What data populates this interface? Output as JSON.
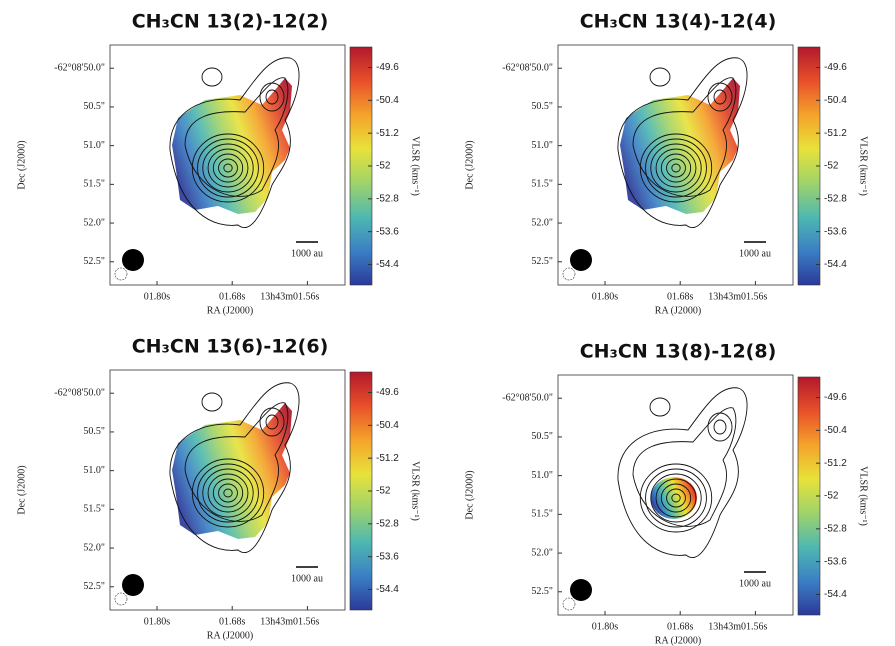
{
  "chart_data": [
    {
      "type": "velocity-map",
      "title": "CH₃CN 13(2)-12(2)",
      "xlabel": "RA (J2000)",
      "ylabel": "Dec (J2000)",
      "colorbar_label": "VLSR (kms⁻¹)",
      "scale_label": "1000 au",
      "xlim": [
        1.875,
        1.5
      ],
      "xticks": [
        {
          "value": 1.8,
          "label": "01.80s"
        },
        {
          "value": 1.68,
          "label": "01.68s"
        },
        {
          "value": 1.56,
          "label": "13h43m01.56s"
        }
      ],
      "ylim": [
        49.7,
        52.8
      ],
      "yticks": [
        {
          "value": 50.0,
          "label": "-62°08'50.0\""
        },
        {
          "value": 50.5,
          "label": "50.5\""
        },
        {
          "value": 51.0,
          "label": "51.0\""
        },
        {
          "value": 51.5,
          "label": "51.5\""
        },
        {
          "value": 52.0,
          "label": "52.0\""
        },
        {
          "value": 52.5,
          "label": "52.5\""
        }
      ],
      "clim": [
        -49.1,
        -54.9
      ],
      "cticks": [
        -49.6,
        -50.4,
        -51.2,
        -52.0,
        -52.8,
        -53.6,
        -54.4
      ],
      "colormap": [
        "#b2182b",
        "#e8502a",
        "#f4a32a",
        "#e8e23a",
        "#9fd36a",
        "#4fb8b0",
        "#3b7fc4",
        "#2b3a9a"
      ]
    },
    {
      "type": "velocity-map",
      "title": "CH₃CN 13(4)-12(4)",
      "xlabel": "RA (J2000)",
      "ylabel": "Dec (J2000)",
      "colorbar_label": "VLSR (kms⁻¹)",
      "scale_label": "1000 au",
      "xlim": [
        1.875,
        1.5
      ],
      "xticks": [
        {
          "value": 1.8,
          "label": "01.80s"
        },
        {
          "value": 1.68,
          "label": "01.68s"
        },
        {
          "value": 1.56,
          "label": "13h43m01.56s"
        }
      ],
      "ylim": [
        49.7,
        52.8
      ],
      "yticks": [
        {
          "value": 50.0,
          "label": "-62°08'50.0\""
        },
        {
          "value": 50.5,
          "label": "50.5\""
        },
        {
          "value": 51.0,
          "label": "51.0\""
        },
        {
          "value": 51.5,
          "label": "51.5\""
        },
        {
          "value": 52.0,
          "label": "52.0\""
        },
        {
          "value": 52.5,
          "label": "52.5\""
        }
      ],
      "clim": [
        -49.1,
        -54.9
      ],
      "cticks": [
        -49.6,
        -50.4,
        -51.2,
        -52.0,
        -52.8,
        -53.6,
        -54.4
      ],
      "colormap": [
        "#b2182b",
        "#e8502a",
        "#f4a32a",
        "#e8e23a",
        "#9fd36a",
        "#4fb8b0",
        "#3b7fc4",
        "#2b3a9a"
      ]
    },
    {
      "type": "velocity-map",
      "title": "CH₃CN 13(6)-12(6)",
      "xlabel": "RA (J2000)",
      "ylabel": "Dec (J2000)",
      "colorbar_label": "VLSR (kms⁻¹)",
      "scale_label": "1000 au",
      "xlim": [
        1.875,
        1.5
      ],
      "xticks": [
        {
          "value": 1.8,
          "label": "01.80s"
        },
        {
          "value": 1.68,
          "label": "01.68s"
        },
        {
          "value": 1.56,
          "label": "13h43m01.56s"
        }
      ],
      "ylim": [
        49.7,
        52.8
      ],
      "yticks": [
        {
          "value": 50.0,
          "label": "-62°08'50.0\""
        },
        {
          "value": 50.5,
          "label": "50.5\""
        },
        {
          "value": 51.0,
          "label": "51.0\""
        },
        {
          "value": 51.5,
          "label": "51.5\""
        },
        {
          "value": 52.0,
          "label": "52.0\""
        },
        {
          "value": 52.5,
          "label": "52.5\""
        }
      ],
      "clim": [
        -49.1,
        -54.9
      ],
      "cticks": [
        -49.6,
        -50.4,
        -51.2,
        -52.0,
        -52.8,
        -53.6,
        -54.4
      ],
      "colormap": [
        "#b2182b",
        "#e8502a",
        "#f4a32a",
        "#e8e23a",
        "#9fd36a",
        "#4fb8b0",
        "#3b7fc4",
        "#2b3a9a"
      ]
    },
    {
      "type": "velocity-map",
      "title": "CH₃CN 13(8)-12(8)",
      "xlabel": "RA (J2000)",
      "ylabel": "Dec (J2000)",
      "colorbar_label": "VLSR (kms⁻¹)",
      "scale_label": "1000 au",
      "xlim": [
        1.875,
        1.5
      ],
      "xticks": [
        {
          "value": 1.8,
          "label": "01.80s"
        },
        {
          "value": 1.68,
          "label": "01.68s"
        },
        {
          "value": 1.56,
          "label": "13h43m01.56s"
        }
      ],
      "ylim": [
        49.7,
        52.8
      ],
      "yticks": [
        {
          "value": 50.0,
          "label": "-62°08'50.0\""
        },
        {
          "value": 50.5,
          "label": "50.5\""
        },
        {
          "value": 51.0,
          "label": "51.0\""
        },
        {
          "value": 51.5,
          "label": "51.5\""
        },
        {
          "value": 52.0,
          "label": "52.0\""
        },
        {
          "value": 52.5,
          "label": "52.5\""
        }
      ],
      "clim": [
        -49.1,
        -54.9
      ],
      "cticks": [
        -49.6,
        -50.4,
        -51.2,
        -52.0,
        -52.8,
        -53.6,
        -54.4
      ],
      "colormap": [
        "#b2182b",
        "#e8502a",
        "#f4a32a",
        "#e8e23a",
        "#9fd36a",
        "#4fb8b0",
        "#3b7fc4",
        "#2b3a9a"
      ]
    }
  ]
}
